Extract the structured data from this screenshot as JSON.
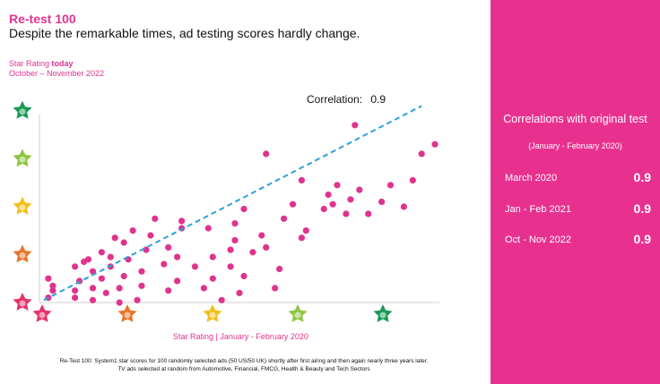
{
  "title": "Re-test 100",
  "subtitle": "Despite the remarkable times, ad testing scores hardly change.",
  "y_title_prefix": "Star Rating ",
  "y_title_bold": "today",
  "y_title_period": "October – November 2022",
  "correlation_label": "Correlation:",
  "correlation_value": "0.9",
  "footnote_line1": "Re-Test 100: System1 star scores for 100 randomly selected ads (50 US/50 UK) shortly after first airing and then again nearly three years later.",
  "footnote_line2": "TV ads selected at random from Automotive, Financial, FMCG, Health & Beauty and Tech Sectors",
  "side_panel": {
    "heading": "Correlations with original test",
    "period": "(January - February 2020)",
    "rows": [
      {
        "label": "March 2020",
        "value": "0.9"
      },
      {
        "label": "Jan - Feb 2021",
        "value": "0.9"
      },
      {
        "label": "Oct - Nov 2022",
        "value": "0.9"
      }
    ]
  },
  "colors": {
    "accent": "#e8318f",
    "points": "#e0338f",
    "trend": "#2aa3d6",
    "star1": "#e5326b",
    "star2": "#e8762a",
    "star3": "#f2c01e",
    "star4": "#8cc63f",
    "star5": "#1a9a55"
  },
  "chart_data": {
    "type": "scatter",
    "xlabel": "Star Rating | January - February 2020",
    "ylabel": "Star Rating today October – November 2022",
    "xlim": [
      1,
      5.5
    ],
    "ylim": [
      1,
      5.2
    ],
    "axis_markers": [
      "1-star",
      "2-star",
      "3-star",
      "4-star",
      "5-star"
    ],
    "trendline": {
      "style": "dashed",
      "from": [
        1.05,
        1.05
      ],
      "to": [
        5.3,
        5.1
      ]
    },
    "points": [
      [
        1.1,
        1.1
      ],
      [
        1.15,
        1.35
      ],
      [
        1.1,
        1.5
      ],
      [
        1.15,
        1.25
      ],
      [
        1.4,
        1.1
      ],
      [
        1.4,
        1.25
      ],
      [
        1.45,
        1.45
      ],
      [
        1.4,
        1.75
      ],
      [
        1.5,
        1.85
      ],
      [
        1.6,
        1.05
      ],
      [
        1.6,
        1.3
      ],
      [
        1.6,
        1.65
      ],
      [
        1.55,
        1.9
      ],
      [
        1.7,
        2.05
      ],
      [
        1.7,
        1.5
      ],
      [
        1.75,
        1.2
      ],
      [
        1.8,
        1.75
      ],
      [
        1.8,
        1.95
      ],
      [
        1.85,
        2.35
      ],
      [
        1.9,
        1.0
      ],
      [
        1.9,
        1.3
      ],
      [
        1.95,
        1.55
      ],
      [
        1.95,
        2.25
      ],
      [
        2.0,
        1.9
      ],
      [
        2.05,
        2.5
      ],
      [
        2.1,
        1.05
      ],
      [
        2.15,
        1.35
      ],
      [
        2.15,
        1.65
      ],
      [
        2.2,
        2.1
      ],
      [
        2.25,
        2.4
      ],
      [
        2.3,
        2.75
      ],
      [
        2.4,
        1.8
      ],
      [
        2.45,
        1.25
      ],
      [
        2.45,
        2.15
      ],
      [
        2.55,
        1.95
      ],
      [
        2.55,
        1.45
      ],
      [
        2.6,
        2.55
      ],
      [
        2.6,
        2.7
      ],
      [
        2.75,
        1.75
      ],
      [
        2.85,
        1.3
      ],
      [
        2.95,
        1.5
      ],
      [
        2.9,
        2.55
      ],
      [
        2.95,
        1.95
      ],
      [
        3.05,
        1.05
      ],
      [
        3.15,
        1.75
      ],
      [
        3.15,
        2.1
      ],
      [
        3.2,
        2.3
      ],
      [
        3.2,
        2.65
      ],
      [
        3.25,
        1.2
      ],
      [
        3.3,
        1.55
      ],
      [
        3.3,
        2.95
      ],
      [
        3.4,
        2.05
      ],
      [
        3.5,
        2.4
      ],
      [
        3.55,
        2.15
      ],
      [
        3.65,
        1.3
      ],
      [
        3.7,
        1.7
      ],
      [
        3.75,
        2.75
      ],
      [
        3.85,
        3.05
      ],
      [
        3.95,
        2.35
      ],
      [
        4.0,
        2.5
      ],
      [
        3.95,
        3.55
      ],
      [
        4.2,
        2.95
      ],
      [
        4.25,
        3.25
      ],
      [
        4.3,
        3.05
      ],
      [
        4.35,
        3.45
      ],
      [
        4.45,
        2.85
      ],
      [
        4.5,
        3.15
      ],
      [
        4.6,
        3.35
      ],
      [
        4.7,
        2.85
      ],
      [
        4.85,
        3.1
      ],
      [
        4.95,
        3.45
      ],
      [
        5.1,
        3.0
      ],
      [
        5.2,
        3.55
      ],
      [
        5.3,
        4.1
      ],
      [
        5.45,
        4.3
      ],
      [
        4.55,
        4.7
      ],
      [
        3.55,
        4.1
      ]
    ]
  }
}
